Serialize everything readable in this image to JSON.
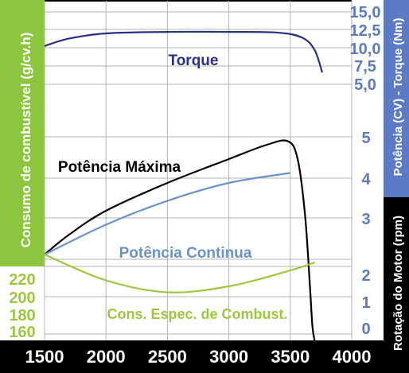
{
  "chart_data": {
    "type": "line",
    "x_axis": {
      "ticks": [
        1500,
        2000,
        2500,
        3000,
        3500,
        4000
      ],
      "range": [
        1500,
        4000
      ]
    },
    "left_axis": {
      "label": "Consumo  de combustível (g/cv.h)",
      "ticks": [
        "220",
        "200",
        "180",
        "160"
      ]
    },
    "right_axis_upper": {
      "label": "Potência (CV) - Torque (Nm)",
      "torque_ticks": [
        "15,0",
        "12,5",
        "10,0",
        "7,5",
        "5,0"
      ],
      "power_ticks": [
        "5",
        "4",
        "3",
        "2",
        "1",
        "0"
      ]
    },
    "right_axis_lower": {
      "label": "Rotação  do Motor (rpm)"
    },
    "series": [
      {
        "name": "Torque",
        "color": "#2a2f8c",
        "axis": "torque",
        "x": [
          1500,
          1700,
          2000,
          2500,
          3000,
          3400,
          3600,
          3700,
          3760
        ],
        "y": [
          10.4,
          11.4,
          12.1,
          12.3,
          12.3,
          12.2,
          11.5,
          9.8,
          6.8
        ]
      },
      {
        "name": "Potência Máxima",
        "color": "#000000",
        "axis": "power",
        "x": [
          1500,
          1700,
          2000,
          2500,
          3000,
          3300,
          3480,
          3560,
          3620,
          3660,
          3680,
          3700
        ],
        "y": [
          2.0,
          2.5,
          3.1,
          3.8,
          4.4,
          4.75,
          4.85,
          4.4,
          3.0,
          1.2,
          0.2,
          -0.2
        ]
      },
      {
        "name": "Potência Continua",
        "color": "#6a93cc",
        "axis": "power",
        "x": [
          1500,
          2000,
          2500,
          3000,
          3500
        ],
        "y": [
          2.0,
          2.75,
          3.35,
          3.8,
          4.05
        ]
      },
      {
        "name": "Cons. Espec. de Combust.",
        "color": "#9cc93c",
        "axis": "power",
        "x": [
          1500,
          2000,
          2500,
          3000,
          3500,
          3700
        ],
        "y": [
          2.0,
          1.35,
          1.05,
          1.2,
          1.6,
          1.8
        ]
      }
    ],
    "annotations": [
      "Torque",
      "Potência Máxima",
      "Potência Continua",
      "Cons. Espec. de Combust."
    ]
  }
}
